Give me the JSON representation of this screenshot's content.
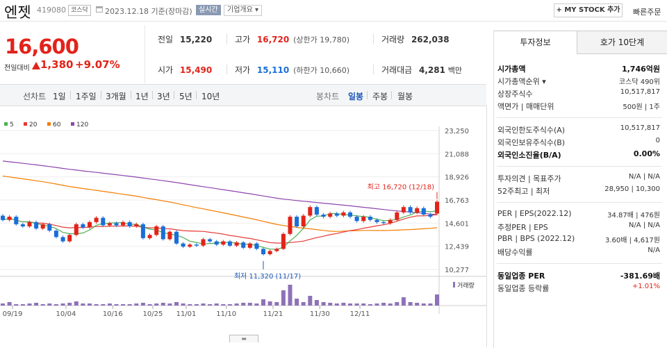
{
  "header": {
    "name": "엔젯",
    "code": "419080",
    "market": "코스닥",
    "date": "2023.12.18 기준(장마감)",
    "realtime": "실시간",
    "company_info": "기업개요 ▾",
    "mystock": "+ MY STOCK 추가",
    "quick_order": "빠른주문"
  },
  "price": {
    "current": "16,600",
    "change_label": "전일대비",
    "change": "1,380",
    "change_pct": "+9.07%"
  },
  "summary": {
    "prev_label": "전일",
    "prev": "15,220",
    "high_label": "고가",
    "high": "16,720",
    "upper_limit": "(상한가 19,780)",
    "volume_label": "거래량",
    "volume": "262,038",
    "open_label": "시가",
    "open": "15,490",
    "low_label": "저가",
    "low": "15,110",
    "lower_limit": "(하한가 10,660)",
    "amount_label": "거래대금",
    "amount": "4,281",
    "amount_unit": "백만"
  },
  "toolbar": {
    "line_label": "선차트",
    "periods": [
      "1일",
      "1주일",
      "3개월",
      "1년",
      "3년",
      "5년",
      "10년"
    ],
    "candle_label": "봉차트",
    "candles": [
      "일봉",
      "주봉",
      "월봉"
    ]
  },
  "colors": {
    "up": "#e2231a",
    "down": "#1a6ed8",
    "ma5": "#4caf50",
    "ma20": "#e53935",
    "ma60": "#f57c00",
    "ma120": "#8e44ad",
    "volume": "#8e72b8"
  },
  "chart_data": {
    "type": "candlestick",
    "legend": [
      "5",
      "20",
      "60",
      "120"
    ],
    "y_ticks": [
      "23,250",
      "21,088",
      "18,926",
      "16,763",
      "14,601",
      "12,439",
      "10,277"
    ],
    "ylim": [
      10277,
      23250
    ],
    "x_ticks": [
      "09/19",
      "10/04",
      "10/16",
      "10/25",
      "11/01",
      "11/10",
      "11/21",
      "11/30",
      "12/11"
    ],
    "high_annotation": "최고 16,720 (12/18)",
    "low_annotation": "최저 11,320 (11/17)",
    "volume_label": "거래량",
    "candles": [
      {
        "o": 15300,
        "c": 14900
      },
      {
        "o": 14900,
        "c": 15200
      },
      {
        "o": 15200,
        "c": 14500
      },
      {
        "o": 14500,
        "c": 14300
      },
      {
        "o": 14300,
        "c": 14700
      },
      {
        "o": 14700,
        "c": 14100
      },
      {
        "o": 14100,
        "c": 14500
      },
      {
        "o": 14500,
        "c": 13900
      },
      {
        "o": 13900,
        "c": 13300
      },
      {
        "o": 13300,
        "c": 12900
      },
      {
        "o": 12900,
        "c": 13500
      },
      {
        "o": 13500,
        "c": 14500
      },
      {
        "o": 14500,
        "c": 14200
      },
      {
        "o": 14200,
        "c": 14700
      },
      {
        "o": 14700,
        "c": 15100
      },
      {
        "o": 15100,
        "c": 14400
      },
      {
        "o": 14400,
        "c": 14600
      },
      {
        "o": 14600,
        "c": 14400
      },
      {
        "o": 14400,
        "c": 14700
      },
      {
        "o": 14700,
        "c": 14300
      },
      {
        "o": 14300,
        "c": 14500
      },
      {
        "o": 14500,
        "c": 13200
      },
      {
        "o": 13200,
        "c": 13500
      },
      {
        "o": 13500,
        "c": 14300
      },
      {
        "o": 14300,
        "c": 13100
      },
      {
        "o": 13100,
        "c": 13800
      },
      {
        "o": 13800,
        "c": 12700
      },
      {
        "o": 12700,
        "c": 12400
      },
      {
        "o": 12400,
        "c": 12600
      },
      {
        "o": 12600,
        "c": 12500
      },
      {
        "o": 12500,
        "c": 13100
      },
      {
        "o": 13100,
        "c": 12900
      },
      {
        "o": 12900,
        "c": 12600
      },
      {
        "o": 12600,
        "c": 12900
      },
      {
        "o": 12900,
        "c": 12500
      },
      {
        "o": 12500,
        "c": 12800
      },
      {
        "o": 12800,
        "c": 12300
      },
      {
        "o": 12300,
        "c": 12700
      },
      {
        "o": 12700,
        "c": 12200
      },
      {
        "o": 12200,
        "c": 11700
      },
      {
        "o": 11700,
        "c": 12000
      },
      {
        "o": 12000,
        "c": 12200
      },
      {
        "o": 12200,
        "c": 13600
      },
      {
        "o": 13600,
        "c": 15200
      },
      {
        "o": 15200,
        "c": 14300
      },
      {
        "o": 14300,
        "c": 15300
      },
      {
        "o": 15300,
        "c": 16100
      },
      {
        "o": 16100,
        "c": 15400
      },
      {
        "o": 15400,
        "c": 15200
      },
      {
        "o": 15200,
        "c": 15500
      },
      {
        "o": 15500,
        "c": 15300
      },
      {
        "o": 15300,
        "c": 15600
      },
      {
        "o": 15600,
        "c": 15200
      },
      {
        "o": 15200,
        "c": 14800
      },
      {
        "o": 14800,
        "c": 15200
      },
      {
        "o": 15200,
        "c": 14900
      },
      {
        "o": 14900,
        "c": 14700
      },
      {
        "o": 14700,
        "c": 14600
      },
      {
        "o": 14600,
        "c": 14900
      },
      {
        "o": 14900,
        "c": 15600
      },
      {
        "o": 15600,
        "c": 16100
      },
      {
        "o": 16100,
        "c": 15600
      },
      {
        "o": 15600,
        "c": 16000
      },
      {
        "o": 16000,
        "c": 15400
      },
      {
        "o": 15400,
        "c": 15200
      },
      {
        "o": 15490,
        "c": 16600
      }
    ],
    "volumes": [
      3,
      5,
      2,
      2,
      3,
      4,
      2,
      3,
      2,
      3,
      4,
      6,
      3,
      3,
      2,
      2,
      3,
      2,
      2,
      2,
      3,
      4,
      2,
      3,
      4,
      3,
      5,
      3,
      2,
      2,
      3,
      2,
      3,
      2,
      2,
      3,
      4,
      4,
      3,
      9,
      6,
      5,
      22,
      30,
      10,
      5,
      14,
      8,
      5,
      4,
      3,
      4,
      3,
      3,
      3,
      2,
      3,
      4,
      3,
      5,
      12,
      5,
      4,
      3,
      3,
      16
    ]
  },
  "right_panel": {
    "tab1": "투자정보",
    "tab2": "호가 10단계",
    "rows": [
      {
        "l": "시가총액",
        "r": "1,746억원",
        "bold": true
      },
      {
        "l": "시가총액순위 ▾",
        "r": "코스닥 490위"
      },
      {
        "l": "상장주식수",
        "r": "10,517,817"
      },
      {
        "l": "액면가 | 매매단위",
        "r": "500원 | 1주"
      },
      {
        "l": "외국인한도주식수(A)",
        "r": "10,517,817"
      },
      {
        "l": "외국인보유주식수(B)",
        "r": "0"
      },
      {
        "l": "외국인소진율(B/A)",
        "r": "0.00%",
        "bold": true
      },
      {
        "l": "투자의견 | 목표주가",
        "r": "N/A | N/A"
      },
      {
        "l": "52주최고 | 최저",
        "r": "28,950 | 10,300"
      },
      {
        "l": "PER | EPS(2022.12)",
        "r": "34.87배 | 476원"
      },
      {
        "l": "추정PER | EPS",
        "r": "N/A | N/A"
      },
      {
        "l": "PBR | BPS (2022.12)",
        "r": "3.60배 | 4,617원"
      },
      {
        "l": "배당수익률",
        "r": "N/A"
      },
      {
        "l": "동일업종 PER",
        "r": "-381.69배",
        "bold": true
      },
      {
        "l": "동일업종 등락률",
        "r": "+1.01%",
        "red": true
      }
    ]
  }
}
